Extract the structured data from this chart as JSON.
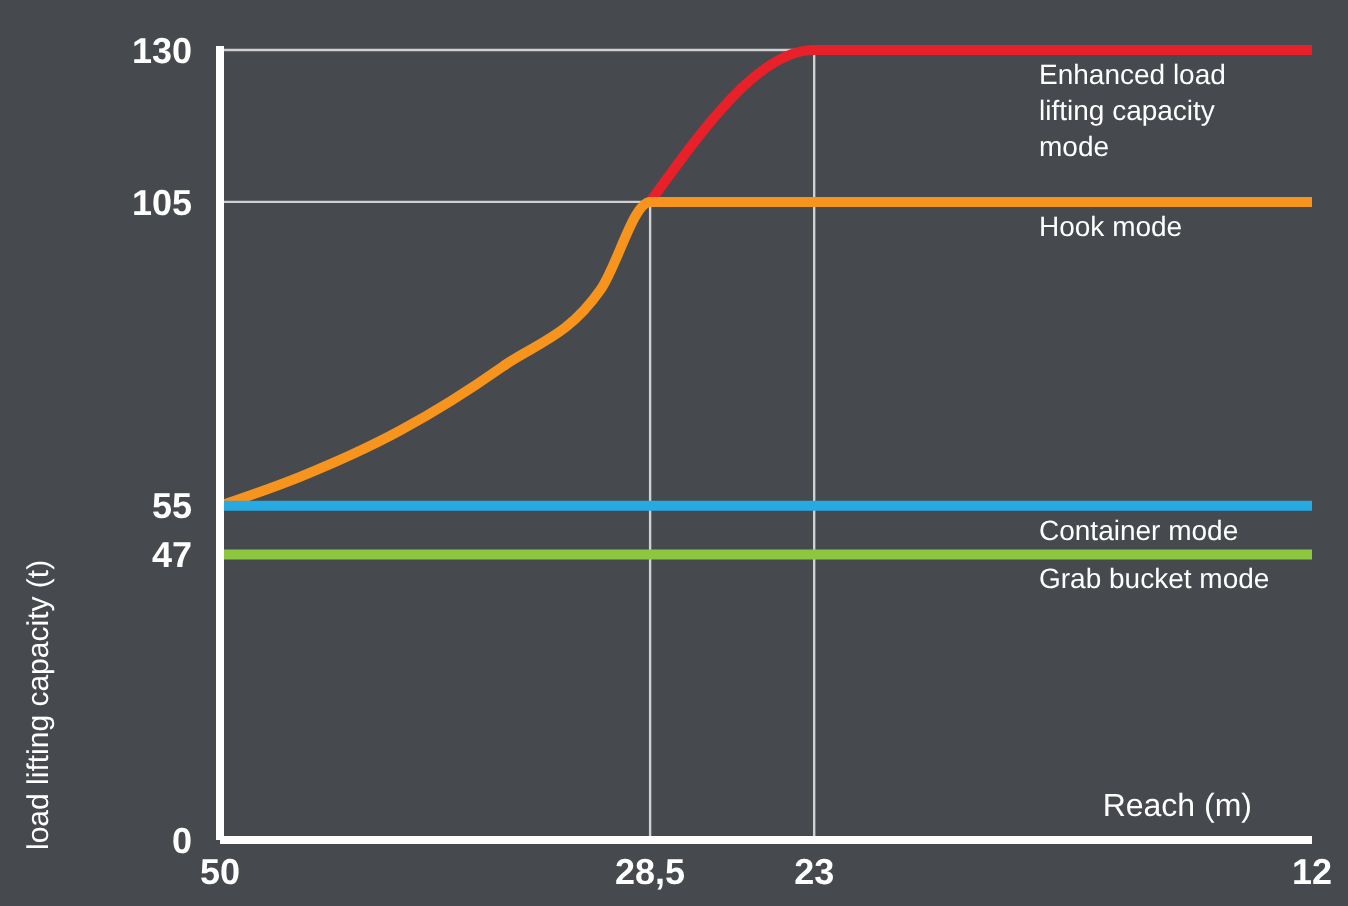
{
  "chart_data": {
    "type": "line",
    "xlabel": "Reach (m)",
    "ylabel": "load lifting capacity (t)",
    "log": "x",
    "xlim": [
      50,
      12
    ],
    "xticks": [
      50,
      {
        "value": 28.5,
        "label": "28,5"
      },
      23,
      12
    ],
    "ylim": [
      0,
      130
    ],
    "yticks": [
      0,
      47,
      55,
      105,
      130
    ],
    "marker": "none",
    "line_style": "solid",
    "series": [
      {
        "name": "Enhanced load lifting capacity mode",
        "color": "#e8202a",
        "x": [
          28.5,
          23,
          12
        ],
        "values": [
          105,
          130,
          130
        ]
      },
      {
        "name": "Hook mode",
        "color": "#f7941d",
        "x": [
          50,
          45,
          39.5,
          34.6,
          30.4,
          28.5,
          12
        ],
        "values": [
          55,
          59.8,
          67.4,
          77.8,
          90.6,
          105,
          105
        ]
      },
      {
        "name": "Container mode",
        "color": "#27a9e1",
        "x": [
          50,
          12
        ],
        "values": [
          55,
          55
        ]
      },
      {
        "name": "Grab bucket mode",
        "color": "#8dc63f",
        "x": [
          50,
          12
        ],
        "values": [
          47,
          47
        ]
      }
    ],
    "ref_lines": [
      {
        "axis": "x",
        "value": 28.5,
        "color": "#d0d0d0"
      },
      {
        "axis": "x",
        "value": 23,
        "color": "#d0d0d0"
      },
      {
        "axis": "y",
        "value": 105,
        "color": "#d0d0d0"
      },
      {
        "axis": "y",
        "value": 130,
        "color": "#d0d0d0"
      }
    ]
  }
}
